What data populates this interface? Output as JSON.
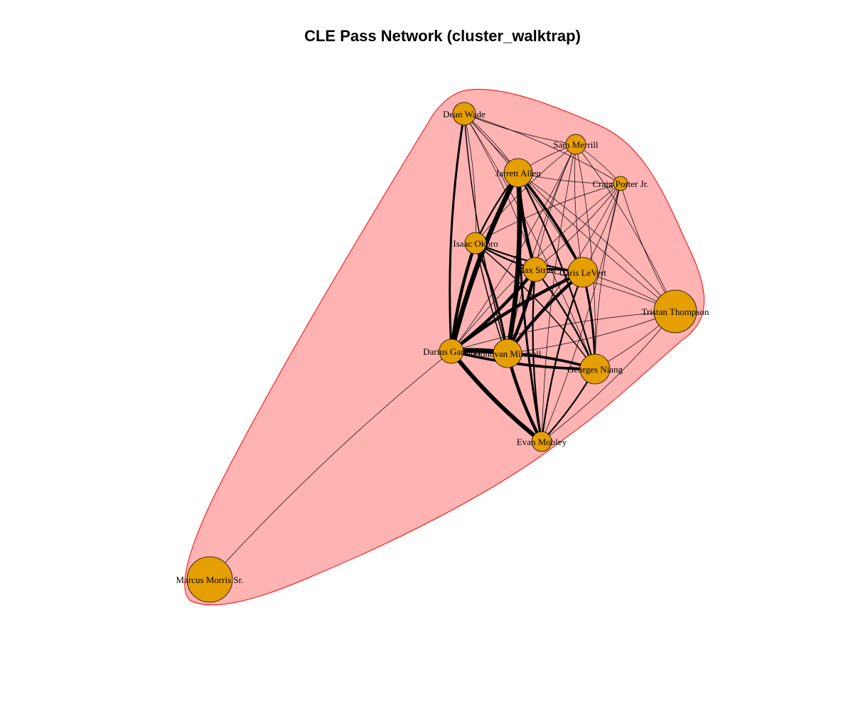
{
  "title": "CLE Pass Network (cluster_walktrap)",
  "colors": {
    "node_fill": "#E69F00",
    "node_stroke": "#000000",
    "cluster_fill": "#FFB3B3",
    "cluster_stroke": "#FF0000",
    "edge": "#000000"
  },
  "nodes": [
    {
      "id": "dean_wade",
      "label": "Dean Wade"
    },
    {
      "id": "sam_merrill",
      "label": "Sam Merrill"
    },
    {
      "id": "jarrett_allen",
      "label": "Jarrett Allen"
    },
    {
      "id": "craig_porter_jr",
      "label": "Craig Porter Jr."
    },
    {
      "id": "isaac_okoro",
      "label": "Isaac Okoro"
    },
    {
      "id": "max_strus",
      "label": "Max Strus"
    },
    {
      "id": "caris_levert",
      "label": "Caris LeVert"
    },
    {
      "id": "tristan_thompson",
      "label": "Tristan Thompson"
    },
    {
      "id": "darius_garland",
      "label": "Darius Garland"
    },
    {
      "id": "donovan_mitchell",
      "label": "Donovan Mitchell"
    },
    {
      "id": "georges_niang",
      "label": "Georges Niang"
    },
    {
      "id": "evan_mobley",
      "label": "Evan Mobley"
    },
    {
      "id": "marcus_morris_sr",
      "label": "Marcus Morris Sr."
    }
  ],
  "edges": [
    {
      "source": "jarrett_allen",
      "target": "darius_garland",
      "weight": 9
    },
    {
      "source": "jarrett_allen",
      "target": "donovan_mitchell",
      "weight": 9
    },
    {
      "source": "jarrett_allen",
      "target": "max_strus",
      "weight": 6
    },
    {
      "source": "jarrett_allen",
      "target": "caris_levert",
      "weight": 5
    },
    {
      "source": "jarrett_allen",
      "target": "evan_mobley",
      "weight": 4
    },
    {
      "source": "jarrett_allen",
      "target": "georges_niang",
      "weight": 3
    },
    {
      "source": "jarrett_allen",
      "target": "isaac_okoro",
      "weight": 3
    },
    {
      "source": "darius_garland",
      "target": "donovan_mitchell",
      "weight": 9
    },
    {
      "source": "darius_garland",
      "target": "evan_mobley",
      "weight": 8
    },
    {
      "source": "darius_garland",
      "target": "caris_levert",
      "weight": 6
    },
    {
      "source": "darius_garland",
      "target": "max_strus",
      "weight": 6
    },
    {
      "source": "darius_garland",
      "target": "isaac_okoro",
      "weight": 6
    },
    {
      "source": "darius_garland",
      "target": "georges_niang",
      "weight": 5
    },
    {
      "source": "darius_garland",
      "target": "dean_wade",
      "weight": 4
    },
    {
      "source": "darius_garland",
      "target": "marcus_morris_sr",
      "weight": 1
    },
    {
      "source": "darius_garland",
      "target": "tristan_thompson",
      "weight": 1
    },
    {
      "source": "donovan_mitchell",
      "target": "evan_mobley",
      "weight": 6
    },
    {
      "source": "donovan_mitchell",
      "target": "caris_levert",
      "weight": 6
    },
    {
      "source": "donovan_mitchell",
      "target": "max_strus",
      "weight": 6
    },
    {
      "source": "donovan_mitchell",
      "target": "georges_niang",
      "weight": 5
    },
    {
      "source": "donovan_mitchell",
      "target": "isaac_okoro",
      "weight": 4
    },
    {
      "source": "donovan_mitchell",
      "target": "dean_wade",
      "weight": 2
    },
    {
      "source": "donovan_mitchell",
      "target": "tristan_thompson",
      "weight": 1
    },
    {
      "source": "caris_levert",
      "target": "georges_niang",
      "weight": 4
    },
    {
      "source": "caris_levert",
      "target": "max_strus",
      "weight": 4
    },
    {
      "source": "caris_levert",
      "target": "isaac_okoro",
      "weight": 3
    },
    {
      "source": "caris_levert",
      "target": "evan_mobley",
      "weight": 3
    },
    {
      "source": "caris_levert",
      "target": "sam_merrill",
      "weight": 1
    },
    {
      "source": "caris_levert",
      "target": "craig_porter_jr",
      "weight": 1
    },
    {
      "source": "caris_levert",
      "target": "tristan_thompson",
      "weight": 1
    },
    {
      "source": "caris_levert",
      "target": "dean_wade",
      "weight": 1
    },
    {
      "source": "max_strus",
      "target": "isaac_okoro",
      "weight": 3
    },
    {
      "source": "max_strus",
      "target": "evan_mobley",
      "weight": 3
    },
    {
      "source": "max_strus",
      "target": "georges_niang",
      "weight": 3
    },
    {
      "source": "max_strus",
      "target": "dean_wade",
      "weight": 1
    },
    {
      "source": "max_strus",
      "target": "sam_merrill",
      "weight": 1
    },
    {
      "source": "isaac_okoro",
      "target": "evan_mobley",
      "weight": 2
    },
    {
      "source": "isaac_okoro",
      "target": "georges_niang",
      "weight": 2
    },
    {
      "source": "isaac_okoro",
      "target": "dean_wade",
      "weight": 1
    },
    {
      "source": "georges_niang",
      "target": "evan_mobley",
      "weight": 3
    },
    {
      "source": "georges_niang",
      "target": "tristan_thompson",
      "weight": 1
    },
    {
      "source": "georges_niang",
      "target": "craig_porter_jr",
      "weight": 1
    },
    {
      "source": "georges_niang",
      "target": "sam_merrill",
      "weight": 1
    },
    {
      "source": "dean_wade",
      "target": "jarrett_allen",
      "weight": 1
    },
    {
      "source": "dean_wade",
      "target": "sam_merrill",
      "weight": 1
    },
    {
      "source": "dean_wade",
      "target": "craig_porter_jr",
      "weight": 1
    },
    {
      "source": "dean_wade",
      "target": "tristan_thompson",
      "weight": 1
    },
    {
      "source": "dean_wade",
      "target": "georges_niang",
      "weight": 1
    },
    {
      "source": "sam_merrill",
      "target": "jarrett_allen",
      "weight": 1
    },
    {
      "source": "sam_merrill",
      "target": "craig_porter_jr",
      "weight": 1
    },
    {
      "source": "sam_merrill",
      "target": "isaac_okoro",
      "weight": 1
    },
    {
      "source": "sam_merrill",
      "target": "darius_garland",
      "weight": 1
    },
    {
      "source": "sam_merrill",
      "target": "donovan_mitchell",
      "weight": 1
    },
    {
      "source": "sam_merrill",
      "target": "tristan_thompson",
      "weight": 1
    },
    {
      "source": "sam_merrill",
      "target": "evan_mobley",
      "weight": 1
    },
    {
      "source": "craig_porter_jr",
      "target": "jarrett_allen",
      "weight": 1
    },
    {
      "source": "craig_porter_jr",
      "target": "isaac_okoro",
      "weight": 1
    },
    {
      "source": "craig_porter_jr",
      "target": "max_strus",
      "weight": 1
    },
    {
      "source": "craig_porter_jr",
      "target": "darius_garland",
      "weight": 1
    },
    {
      "source": "craig_porter_jr",
      "target": "donovan_mitchell",
      "weight": 1
    },
    {
      "source": "craig_porter_jr",
      "target": "tristan_thompson",
      "weight": 1
    },
    {
      "source": "craig_porter_jr",
      "target": "evan_mobley",
      "weight": 1
    },
    {
      "source": "tristan_thompson",
      "target": "jarrett_allen",
      "weight": 1
    },
    {
      "source": "tristan_thompson",
      "target": "evan_mobley",
      "weight": 1
    },
    {
      "source": "tristan_thompson",
      "target": "max_strus",
      "weight": 1
    }
  ]
}
